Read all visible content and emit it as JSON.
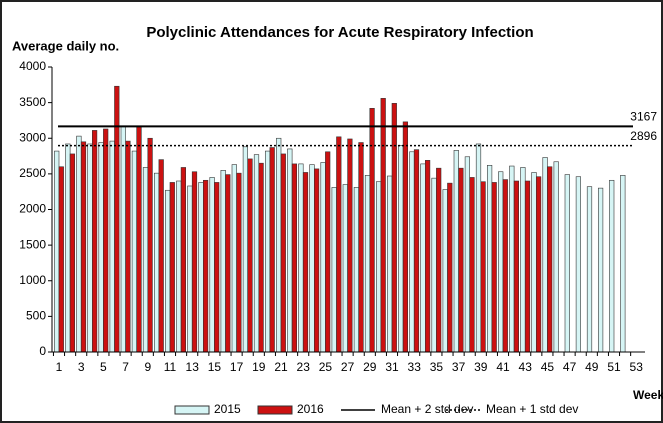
{
  "chart_data": {
    "type": "bar",
    "title": "Polyclinic Attendances for Acute Respiratory Infection",
    "y_axis_label": "Average daily no.",
    "x_axis_label": "Week",
    "categories": [
      1,
      null,
      3,
      null,
      5,
      null,
      7,
      null,
      9,
      null,
      11,
      null,
      13,
      null,
      15,
      null,
      17,
      null,
      19,
      null,
      21,
      null,
      23,
      null,
      25,
      null,
      27,
      null,
      29,
      null,
      31,
      null,
      33,
      null,
      35,
      null,
      37,
      null,
      39,
      null,
      41,
      null,
      43,
      null,
      45,
      null,
      47,
      null,
      49,
      null,
      51,
      null,
      53
    ],
    "series": [
      {
        "name": "2015",
        "color": "#d6f5f5",
        "values": [
          2820,
          2920,
          3030,
          2920,
          2940,
          2960,
          3170,
          2820,
          2590,
          2510,
          2270,
          2400,
          2330,
          2380,
          2450,
          2550,
          2630,
          2880,
          2770,
          2820,
          3000,
          2850,
          2640,
          2630,
          2660,
          2310,
          2350,
          2310,
          2480,
          2390,
          2470,
          2900,
          2810,
          2640,
          2440,
          2280,
          2830,
          2740,
          2920,
          2620,
          2530,
          2610,
          2590,
          2520,
          2730,
          2670,
          2490,
          2460,
          2320,
          2300,
          2410,
          2480,
          null
        ]
      },
      {
        "name": "2016",
        "color": "#cc1111",
        "values": [
          2600,
          2780,
          2950,
          3110,
          3130,
          3730,
          2960,
          3160,
          3000,
          2700,
          2380,
          2590,
          2530,
          2410,
          2380,
          2490,
          2510,
          2710,
          2650,
          2870,
          2780,
          2640,
          2520,
          2570,
          2810,
          3020,
          2990,
          2940,
          3420,
          3560,
          3490,
          3230,
          2840,
          2690,
          2580,
          2370,
          2580,
          2450,
          2390,
          2380,
          2420,
          2400,
          2400,
          2460,
          2600,
          null,
          null,
          null,
          null,
          null,
          null,
          null,
          null
        ]
      }
    ],
    "reference_lines": [
      {
        "name": "Mean + 2 std dev",
        "value": 3167,
        "style": "solid",
        "color": "#000000"
      },
      {
        "name": "Mean + 1 std dev",
        "value": 2896,
        "style": "dotted",
        "color": "#000000"
      }
    ],
    "ylim": [
      0,
      4000
    ],
    "yticks": [
      0,
      500,
      1000,
      1500,
      2000,
      2500,
      3000,
      3500,
      4000
    ],
    "legend": "bottom"
  }
}
